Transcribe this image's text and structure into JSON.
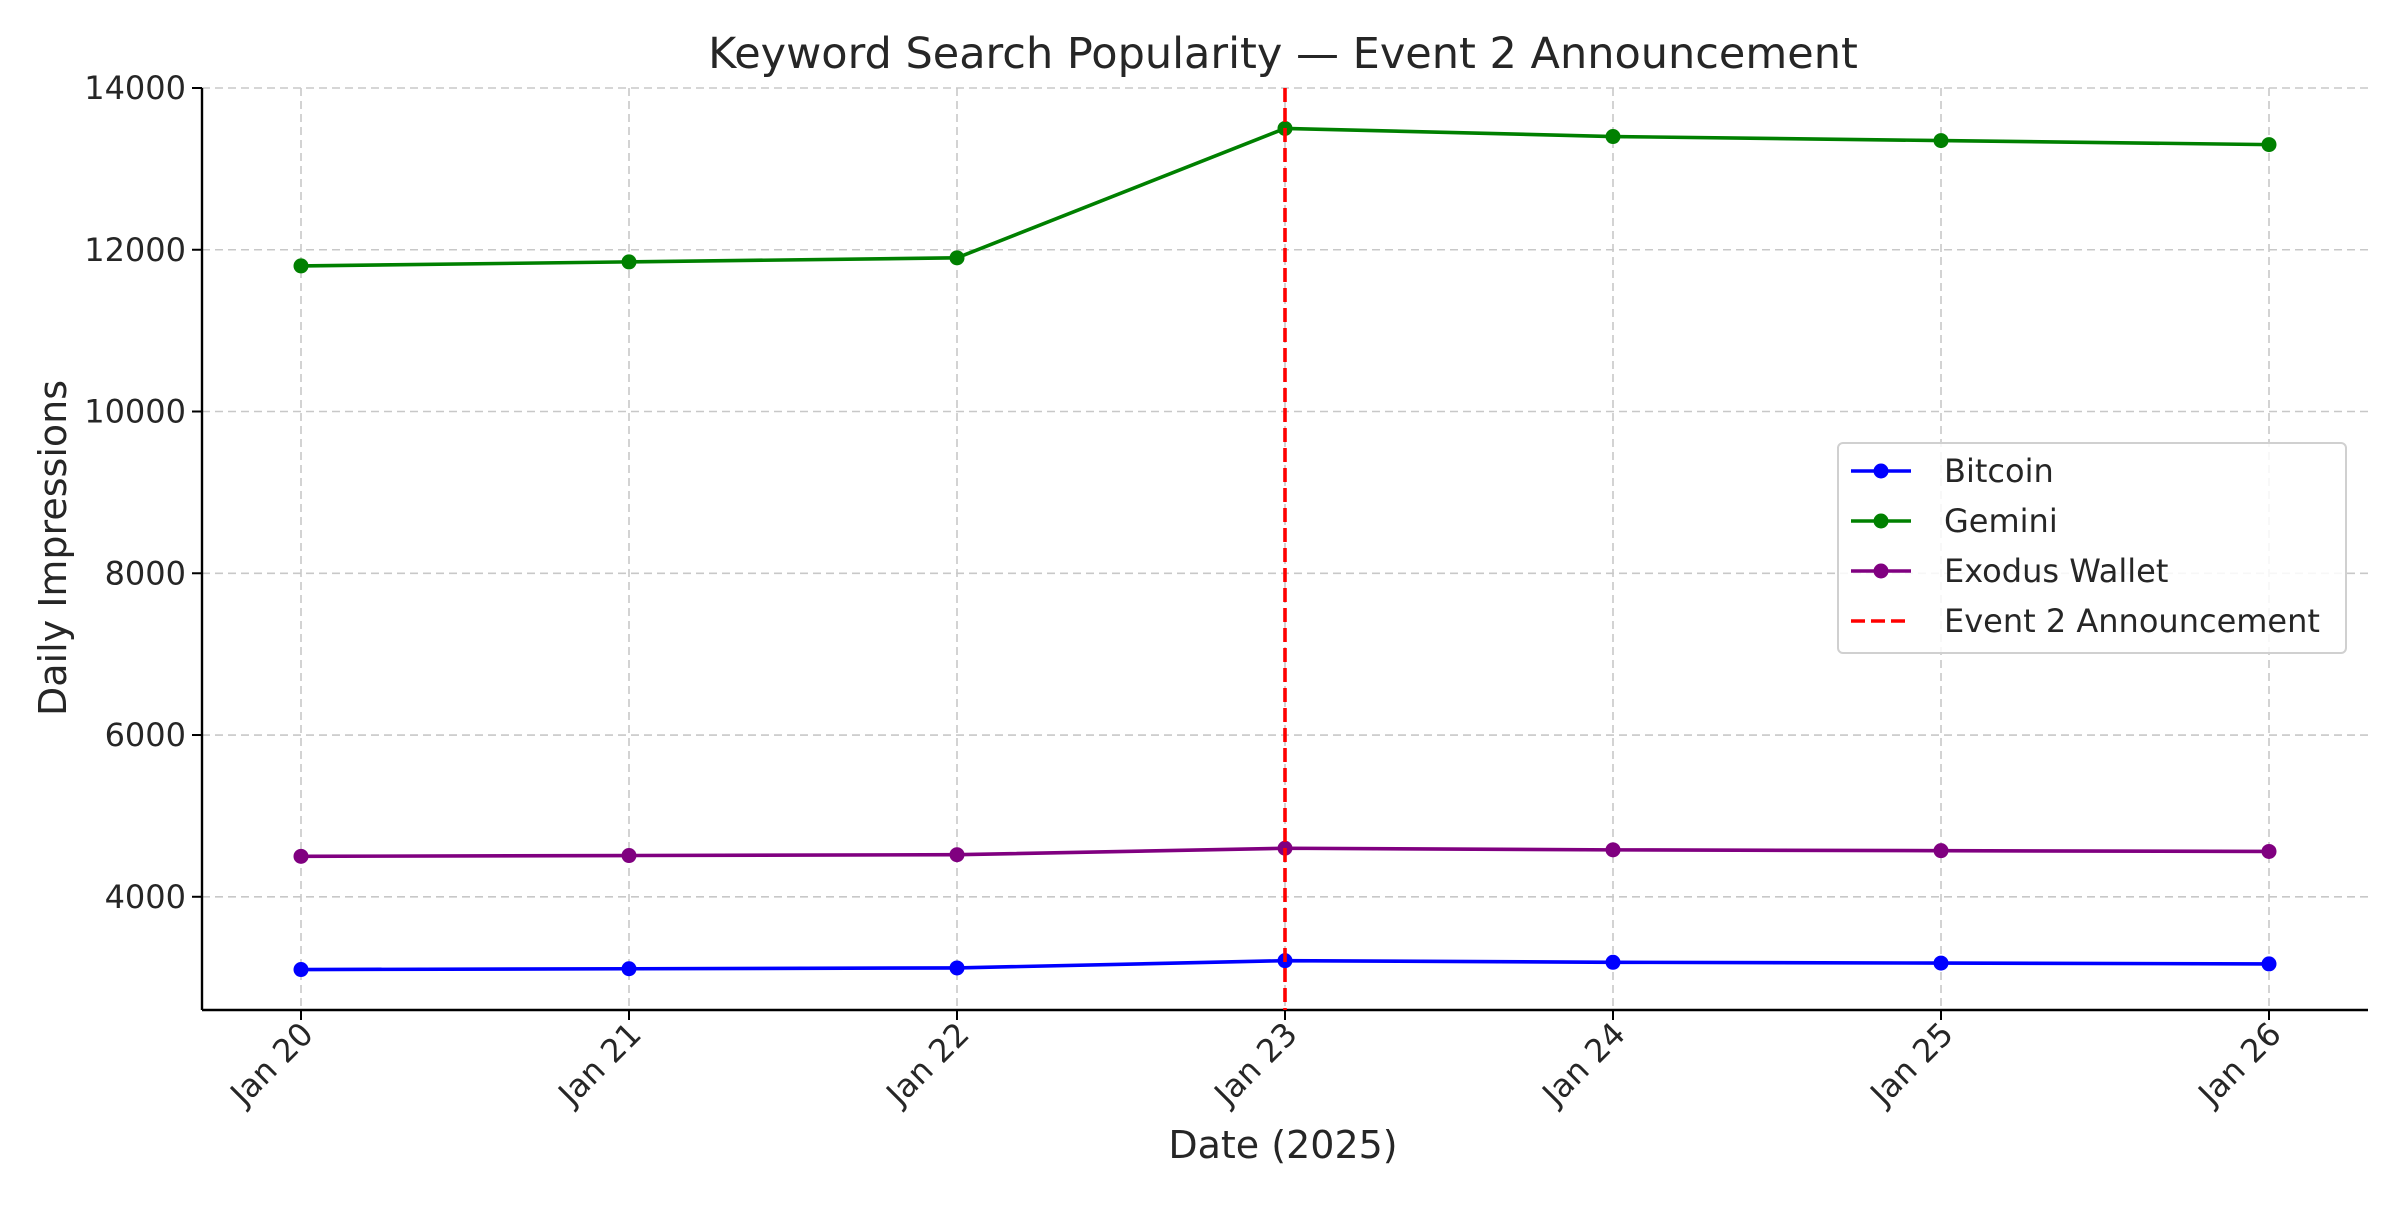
{
  "chart_data": {
    "type": "line",
    "title": "Keyword Search Popularity — Event 2 Announcement",
    "xlabel": "Date (2025)",
    "ylabel": "Daily Impressions",
    "categories": [
      "Jan 20",
      "Jan 21",
      "Jan 22",
      "Jan 23",
      "Jan 24",
      "Jan 25",
      "Jan 26"
    ],
    "ylim": [
      2600,
      14000
    ],
    "yticks": [
      4000,
      6000,
      8000,
      10000,
      12000,
      14000
    ],
    "grid": true,
    "legend_position": "center-right",
    "series": [
      {
        "name": "Bitcoin",
        "color": "#0000ff",
        "values": [
          3100,
          3110,
          3120,
          3210,
          3190,
          3180,
          3170
        ]
      },
      {
        "name": "Gemini",
        "color": "#008000",
        "values": [
          11800,
          11850,
          11900,
          13500,
          13400,
          13350,
          13300
        ]
      },
      {
        "name": "Exodus Wallet",
        "color": "#800080",
        "values": [
          4500,
          4510,
          4520,
          4600,
          4580,
          4570,
          4560
        ]
      }
    ],
    "annotations": [
      {
        "type": "vline",
        "x": "Jan 23",
        "label": "Event 2 Announcement",
        "color": "#ff0000",
        "style": "dashed"
      }
    ]
  }
}
